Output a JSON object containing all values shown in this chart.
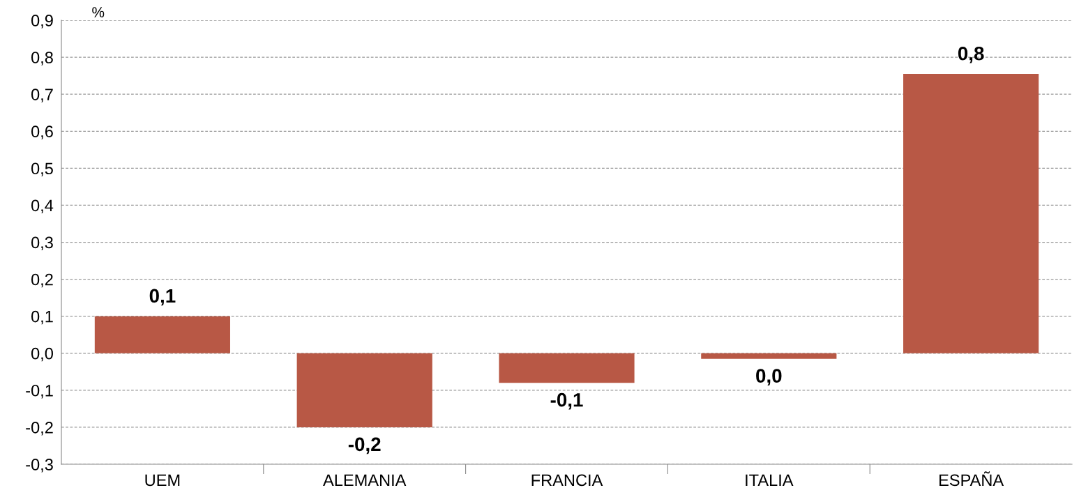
{
  "chart_data": {
    "type": "bar",
    "ylabel": "%",
    "categories": [
      "UEM",
      "ALEMANIA",
      "FRANCIA",
      "ITALIA",
      "ESPAÑA"
    ],
    "values": [
      0.1,
      -0.2,
      -0.08,
      -0.015,
      0.755
    ],
    "color": "#b85845",
    "value_labels": [
      "0,1",
      "-0,2",
      "-0,1",
      "0,0",
      "0,8"
    ],
    "ylim": [
      -0.3,
      0.9
    ],
    "yticks": [
      {
        "value": -0.3,
        "label": "-0,3"
      },
      {
        "value": -0.2,
        "label": "-0,2"
      },
      {
        "value": -0.1,
        "label": "-0,1"
      },
      {
        "value": 0,
        "label": "0,0"
      },
      {
        "value": 0.1,
        "label": "0,1"
      },
      {
        "value": 0.2,
        "label": "0,2"
      },
      {
        "value": 0.3,
        "label": "0,3"
      },
      {
        "value": 0.4,
        "label": "0,4"
      },
      {
        "value": 0.5,
        "label": "0,5"
      },
      {
        "value": 0.6,
        "label": "0,6"
      },
      {
        "value": 0.7,
        "label": "0,7"
      },
      {
        "value": 0.8,
        "label": "0,8"
      },
      {
        "value": 0.9,
        "label": "0,9"
      }
    ],
    "grid": "y",
    "legend": false
  }
}
